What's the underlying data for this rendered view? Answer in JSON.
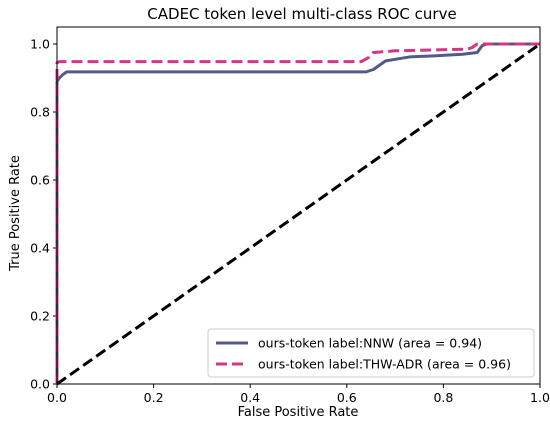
{
  "chart_data": {
    "type": "line",
    "title": "CADEC token level multi-class ROC curve",
    "xlabel": "False Positive Rate",
    "ylabel": "True Positive Rate",
    "xlim": [
      0,
      1
    ],
    "ylim": [
      0,
      1.05
    ],
    "x_ticks": [
      "0.0",
      "0.2",
      "0.4",
      "0.6",
      "0.8",
      "1.0"
    ],
    "y_ticks": [
      "0.0",
      "0.2",
      "0.4",
      "0.6",
      "0.8",
      "1.0"
    ],
    "grid": false,
    "legend_position": "lower-right",
    "series": [
      {
        "name": "ours-token label:NNW (area = 0.94)",
        "color": "#515b8a",
        "style": "solid",
        "points": [
          [
            0,
            0
          ],
          [
            0,
            0.89
          ],
          [
            0.005,
            0.9
          ],
          [
            0.012,
            0.91
          ],
          [
            0.02,
            0.918
          ],
          [
            0.64,
            0.918
          ],
          [
            0.655,
            0.925
          ],
          [
            0.665,
            0.935
          ],
          [
            0.68,
            0.95
          ],
          [
            0.7,
            0.955
          ],
          [
            0.73,
            0.962
          ],
          [
            0.78,
            0.965
          ],
          [
            0.84,
            0.97
          ],
          [
            0.87,
            0.975
          ],
          [
            0.88,
            0.995
          ],
          [
            0.89,
            1.0
          ],
          [
            1.0,
            1.0
          ]
        ]
      },
      {
        "name": "ours-token label:THW-ADR (area = 0.96)",
        "color": "#d63585",
        "style": "dashed",
        "points": [
          [
            0,
            0
          ],
          [
            0,
            0.945
          ],
          [
            0.005,
            0.948
          ],
          [
            0.63,
            0.948
          ],
          [
            0.645,
            0.96
          ],
          [
            0.655,
            0.975
          ],
          [
            0.7,
            0.98
          ],
          [
            0.85,
            0.985
          ],
          [
            0.86,
            0.99
          ],
          [
            0.87,
            1.0
          ],
          [
            1.0,
            1.0
          ]
        ]
      },
      {
        "name": "",
        "color": "#000000",
        "style": "dashed",
        "points": [
          [
            0,
            0
          ],
          [
            1,
            1
          ]
        ]
      }
    ]
  }
}
